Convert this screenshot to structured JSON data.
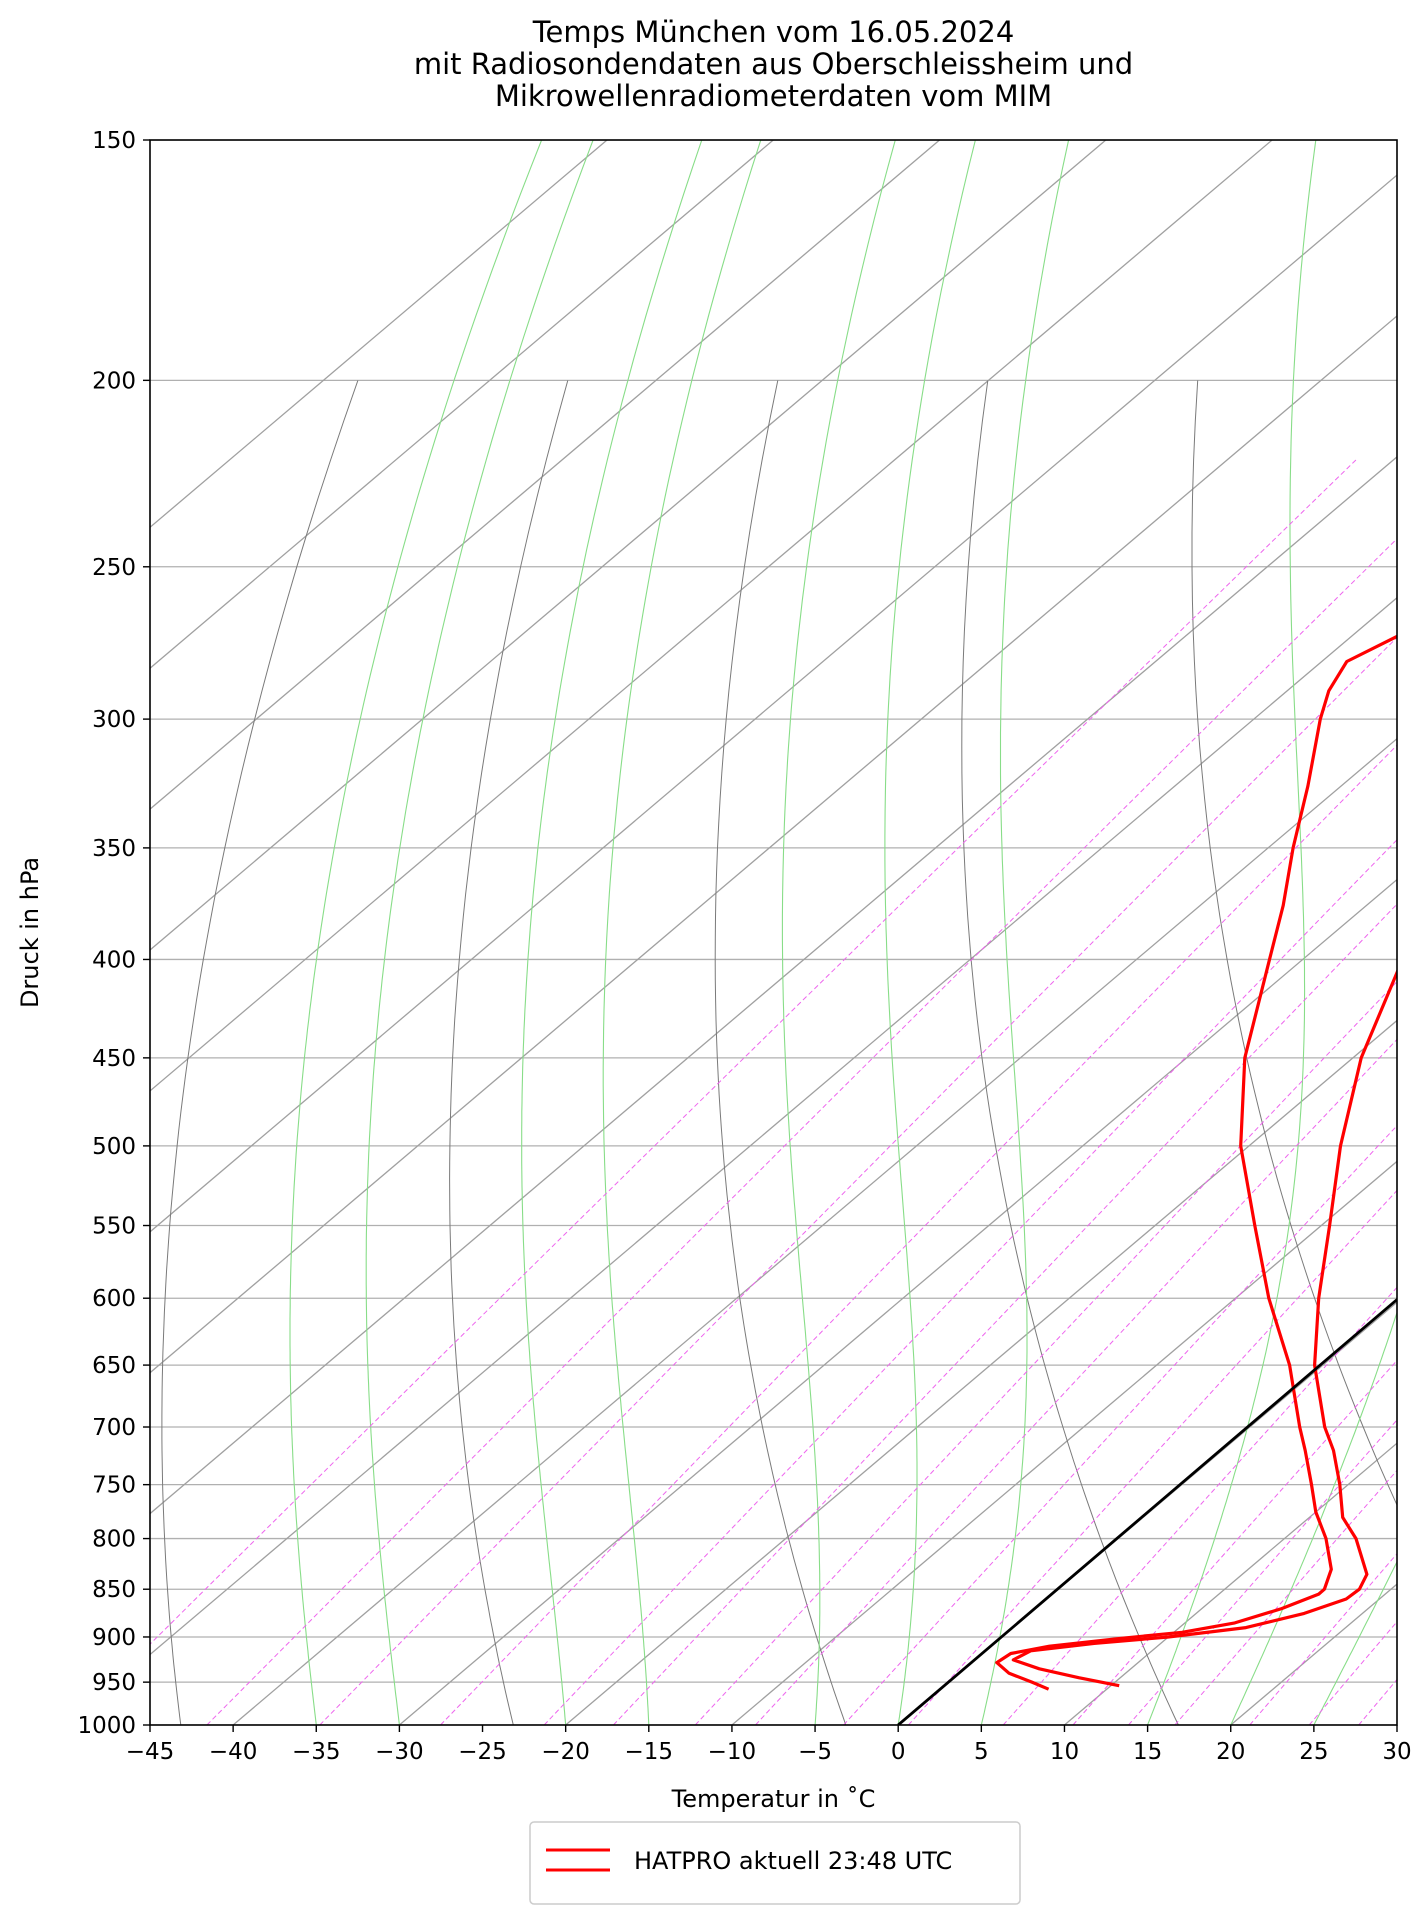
{
  "chart_data": {
    "type": "line",
    "subtype": "skew-t log-p diagram",
    "title": [
      "Temps München vom 16.05.2024",
      "mit Radiosondendaten aus Oberschleissheim und",
      "Mikrowellenradiometerdaten vom MIM"
    ],
    "xlabel": "Temperatur in $^\\circ$C",
    "xlabel_display": "Temperatur in ˚C",
    "ylabel": "Druck in hPa",
    "xlim": [
      -45,
      30
    ],
    "ylim": [
      1000,
      150
    ],
    "y_scale": "log",
    "x_ticks": [
      -45,
      -40,
      -35,
      -30,
      -25,
      -20,
      -15,
      -10,
      -5,
      0,
      5,
      10,
      15,
      20,
      25,
      30
    ],
    "x_tick_labels": [
      "−45",
      "−40",
      "−35",
      "−30",
      "−25",
      "−20",
      "−15",
      "−10",
      "−5",
      "0",
      "5",
      "10",
      "15",
      "20",
      "25",
      "30"
    ],
    "y_ticks": [
      150,
      200,
      250,
      300,
      350,
      400,
      450,
      500,
      550,
      600,
      650,
      700,
      750,
      800,
      850,
      900,
      950,
      1000
    ],
    "y_tick_labels": [
      "150",
      "200",
      "250",
      "300",
      "350",
      "400",
      "450",
      "500",
      "550",
      "600",
      "650",
      "700",
      "750",
      "800",
      "850",
      "900",
      "950",
      "1000"
    ],
    "grid": true,
    "background_lines": {
      "isotherms_C": [
        -130,
        -120,
        -110,
        -100,
        -90,
        -80,
        -70,
        -60,
        -50,
        -40,
        -30,
        -20,
        -10,
        0,
        10,
        20,
        30
      ],
      "dry_adiabats_K": [
        210,
        230,
        250,
        270,
        290,
        310,
        330,
        350,
        370,
        390,
        410,
        430,
        450,
        470,
        490
      ],
      "moist_adiabats_start_C": [
        -35,
        -30,
        -20,
        -15,
        -5,
        0,
        5,
        15,
        20,
        25,
        30,
        35
      ],
      "mixing_ratios_gkg": [
        0.04,
        0.1,
        0.2,
        0.4,
        0.7,
        1.0,
        1.5,
        2.0,
        3.0,
        4.0,
        6.0,
        8.0,
        10.0,
        12.0,
        16.0,
        20.0,
        24.0
      ]
    },
    "series": [
      {
        "name": "HATPRO aktuell 23:48 UTC",
        "color": "#ff0000",
        "points": [
          [
            954,
            10.5
          ],
          [
            945,
            7.5
          ],
          [
            935,
            4.5
          ],
          [
            925,
            2.3
          ],
          [
            915,
            2.7
          ],
          [
            907,
            6
          ],
          [
            900,
            10
          ],
          [
            890,
            14
          ],
          [
            875,
            16.5
          ],
          [
            860,
            18
          ],
          [
            850,
            18.1
          ],
          [
            835,
            17.5
          ],
          [
            800,
            14.3
          ],
          [
            780,
            12
          ],
          [
            750,
            9.5
          ],
          [
            720,
            6.7
          ],
          [
            700,
            4.5
          ],
          [
            650,
            -0.5
          ],
          [
            600,
            -5
          ],
          [
            550,
            -9.5
          ],
          [
            500,
            -14.5
          ],
          [
            450,
            -19.5
          ],
          [
            400,
            -24
          ],
          [
            375,
            -26.5
          ],
          [
            350,
            -29.5
          ],
          [
            325,
            -33
          ],
          [
            300,
            -37
          ],
          [
            290,
            -38.5
          ],
          [
            280,
            -38.5
          ],
          [
            270,
            -37
          ],
          [
            262,
            -35
          ]
        ]
      },
      {
        "name": "HATPRO aktuell 23:48 UTC",
        "color": "#ff0000",
        "points": [
          [
            958,
            6.5
          ],
          [
            950,
            5
          ],
          [
            940,
            3
          ],
          [
            928,
            1.5
          ],
          [
            918,
            1.7
          ],
          [
            910,
            3.5
          ],
          [
            902,
            7
          ],
          [
            895,
            10.5
          ],
          [
            885,
            13
          ],
          [
            870,
            14.8
          ],
          [
            855,
            16
          ],
          [
            850,
            16
          ],
          [
            830,
            15
          ],
          [
            800,
            12.5
          ],
          [
            775,
            10
          ],
          [
            750,
            7.8
          ],
          [
            720,
            5
          ],
          [
            700,
            3
          ],
          [
            650,
            -2
          ],
          [
            600,
            -8
          ],
          [
            550,
            -14
          ],
          [
            500,
            -20.5
          ],
          [
            450,
            -26.5
          ],
          [
            400,
            -32
          ],
          [
            375,
            -35
          ],
          [
            350,
            -38.5
          ],
          [
            325,
            -42
          ],
          [
            300,
            -46
          ],
          [
            290,
            -47.5
          ],
          [
            280,
            -48.5
          ],
          [
            270,
            -47
          ],
          [
            262,
            -45.5
          ]
        ]
      },
      {
        "name": "",
        "color": "#000000",
        "points": [
          [
            1000,
            0
          ],
          [
            270,
            -0.5
          ]
        ]
      }
    ],
    "legend": {
      "placement": "below-center",
      "entries": [
        "HATPRO aktuell 23:48 UTC"
      ]
    },
    "colors": {
      "profile": "#ff0000",
      "reference_line": "#000000",
      "isotherm": "#a0a0a0",
      "dry_adiabat": "#7a7a7a",
      "moist_adiabat": "#88dd88",
      "mixing_ratio": "#ee66ee",
      "grid": "#b0b0b0"
    }
  }
}
